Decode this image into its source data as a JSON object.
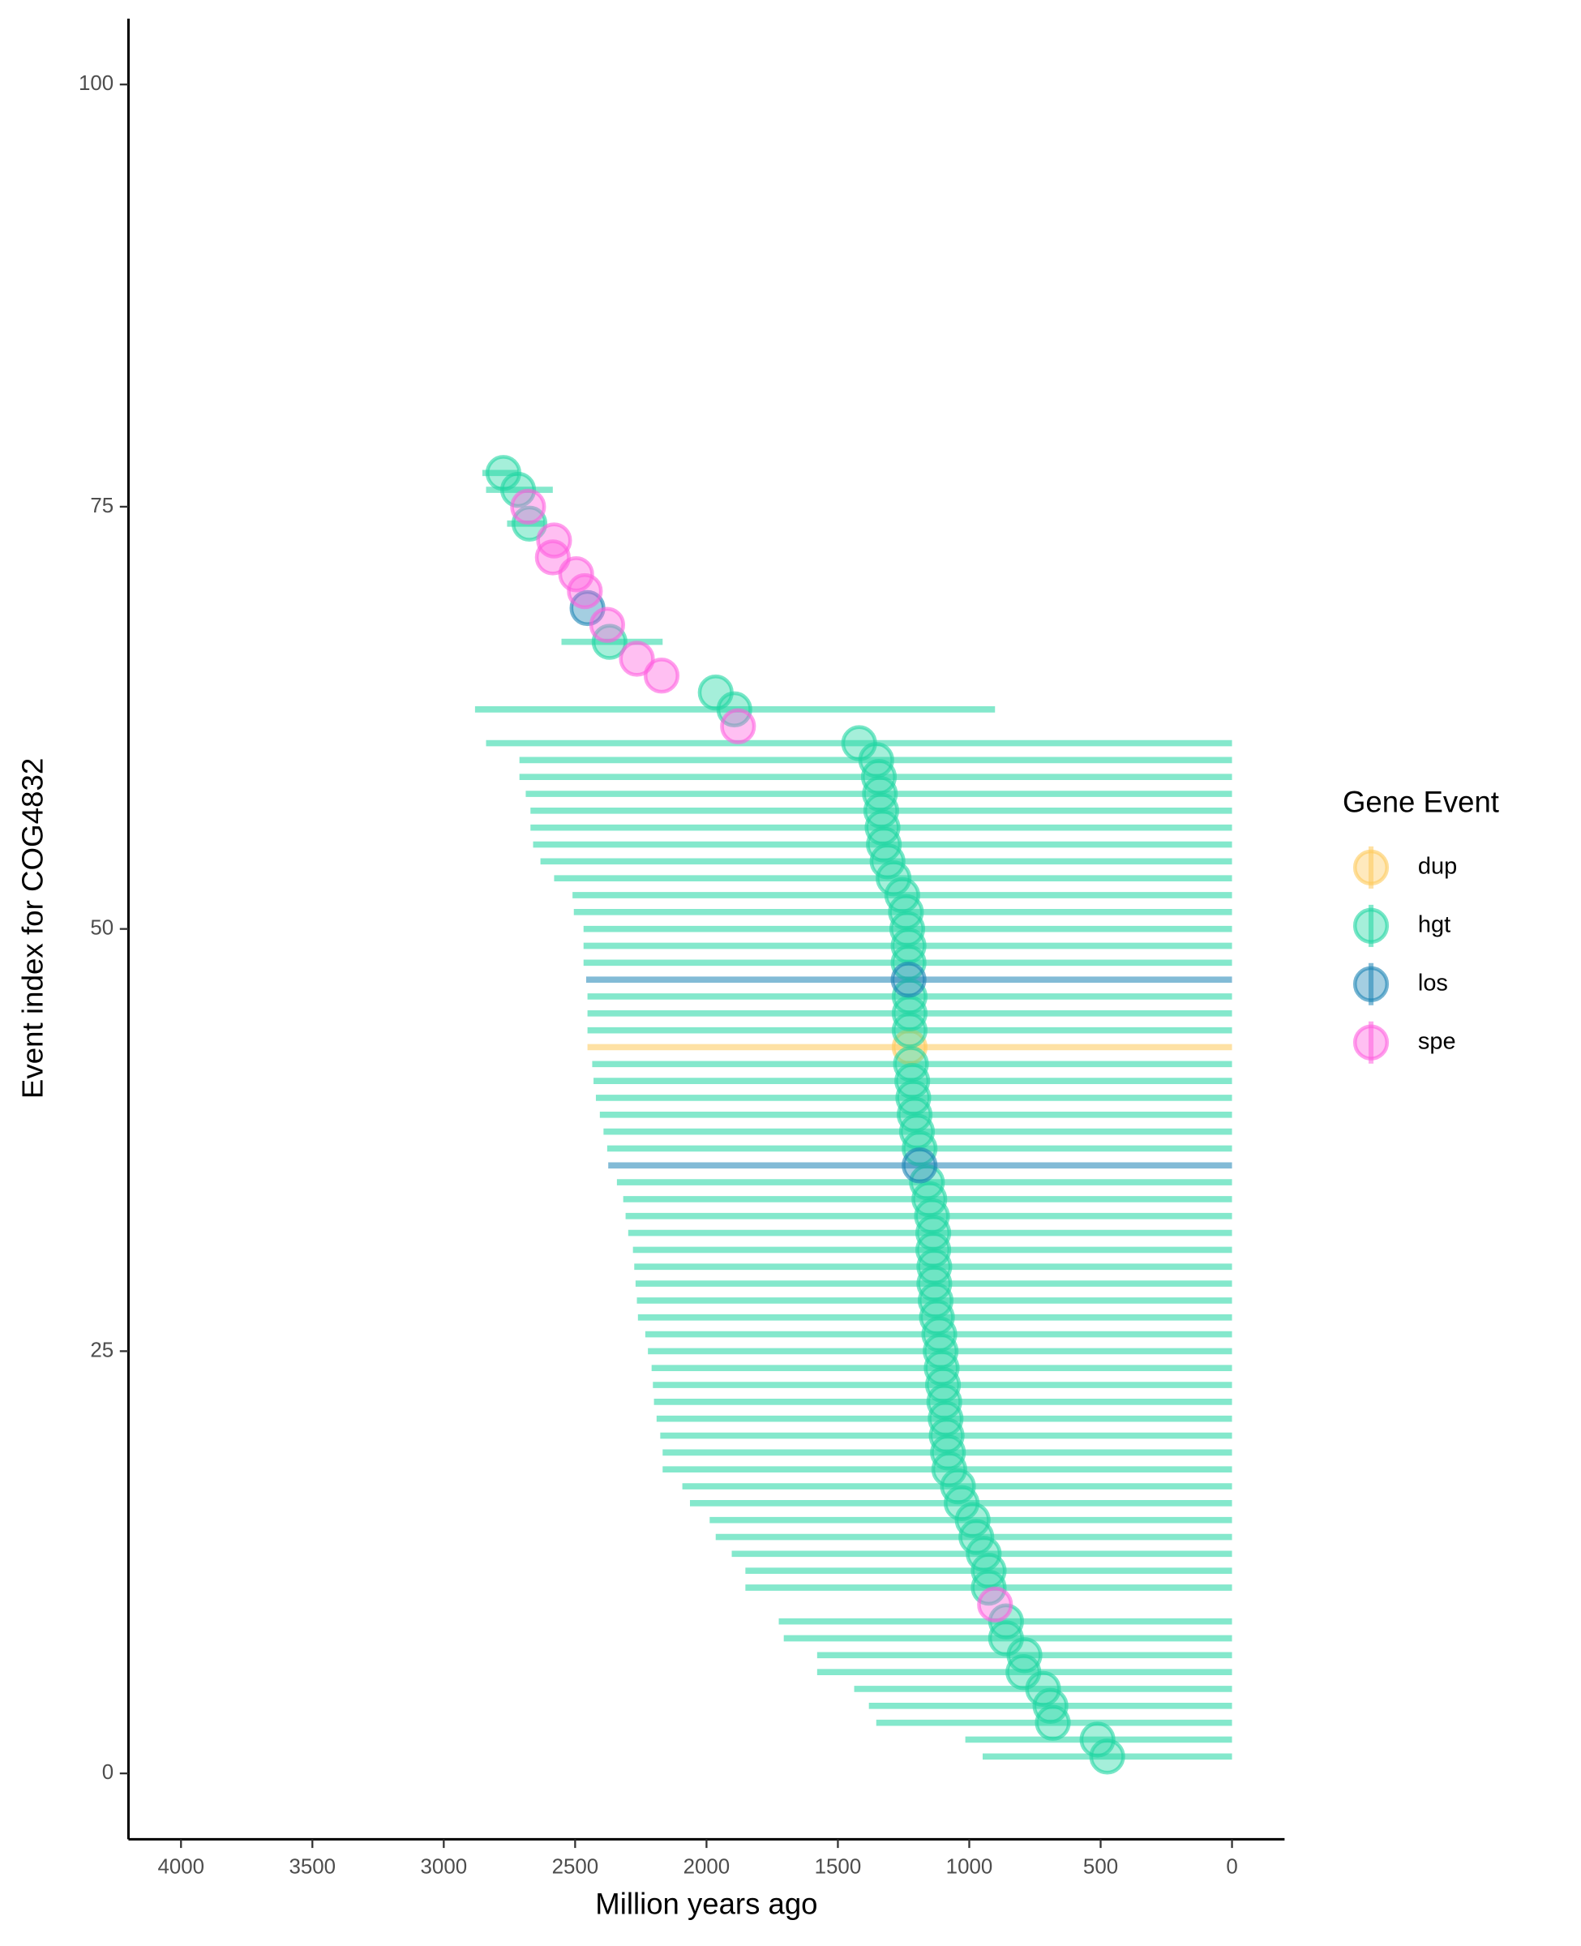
{
  "chart_data": {
    "type": "pointrange",
    "x_label": "Million years ago",
    "y_label": "Event index for COG4832",
    "legend_title": "Gene Event",
    "xlim": [
      4200,
      -200
    ],
    "xticks": [
      4000,
      3500,
      3000,
      2500,
      2000,
      1500,
      1000,
      500,
      0
    ],
    "ylim": [
      -3.9,
      103.9
    ],
    "yticks": [
      0,
      25,
      50,
      75,
      100
    ],
    "series": [
      {
        "name": "dup",
        "color": "#fdc95a",
        "y": [
          43
        ],
        "x": [
          1227
        ],
        "xerr_low": [
          0
        ],
        "xerr_high": [
          2453
        ]
      },
      {
        "name": "hgt",
        "color": "#1fd6a2",
        "y": [
          1,
          2,
          3,
          4,
          5,
          6,
          7,
          8,
          9,
          11,
          12,
          13,
          14,
          15,
          16,
          17,
          18,
          19,
          20,
          21,
          22,
          23,
          24,
          25,
          26,
          27,
          28,
          29,
          30,
          31,
          32,
          33,
          34,
          35,
          37,
          38,
          39,
          40,
          41,
          42,
          44,
          45,
          46,
          48,
          49,
          50,
          51,
          52,
          53,
          54,
          55,
          56,
          57,
          58,
          59,
          60,
          61,
          63,
          64,
          67,
          74,
          76,
          77
        ],
        "x": [
          475,
          512,
          682,
          691,
          719,
          794,
          790,
          860,
          860,
          926,
          926,
          945,
          973,
          987,
          1029,
          1043,
          1076,
          1081,
          1086,
          1090,
          1095,
          1100,
          1105,
          1109,
          1114,
          1123,
          1128,
          1133,
          1133,
          1137,
          1137,
          1142,
          1152,
          1161,
          1189,
          1199,
          1208,
          1213,
          1217,
          1222,
          1227,
          1227,
          1227,
          1231,
          1231,
          1236,
          1241,
          1255,
          1288,
          1311,
          1325,
          1330,
          1335,
          1340,
          1344,
          1354,
          1419,
          1894,
          1965,
          2369,
          2674,
          2717,
          2773
        ],
        "xerr_low": [
          0,
          0,
          0,
          0,
          0,
          0,
          0,
          0,
          0,
          0,
          0,
          0,
          0,
          0,
          0,
          0,
          0,
          0,
          0,
          0,
          0,
          0,
          0,
          0,
          0,
          0,
          0,
          0,
          0,
          0,
          0,
          0,
          0,
          0,
          0,
          0,
          0,
          0,
          0,
          0,
          0,
          0,
          0,
          0,
          0,
          0,
          0,
          0,
          0,
          0,
          0,
          0,
          0,
          0,
          0,
          0,
          0,
          902,
          null,
          2167,
          2618,
          2585,
          2717
        ],
        "xerr_high": [
          949,
          1015,
          1354,
          1382,
          1438,
          1579,
          1579,
          1706,
          1725,
          1852,
          1852,
          1904,
          1965,
          1988,
          2063,
          2092,
          2167,
          2167,
          2176,
          2190,
          2200,
          2204,
          2209,
          2223,
          2233,
          2261,
          2265,
          2270,
          2275,
          2280,
          2298,
          2308,
          2317,
          2341,
          2378,
          2392,
          2406,
          2421,
          2430,
          2435,
          2453,
          2453,
          2453,
          2468,
          2468,
          2468,
          2505,
          2510,
          2580,
          2632,
          2660,
          2670,
          2670,
          2688,
          2712,
          2712,
          2839,
          2881,
          null,
          2552,
          2759,
          2839,
          2853
        ]
      },
      {
        "name": "los",
        "color": "#1b84b4",
        "y": [
          36,
          47,
          69
        ],
        "x": [
          1189,
          1231,
          2453
        ],
        "xerr_low": [
          0,
          0,
          null
        ],
        "xerr_high": [
          2374,
          2458,
          null
        ]
      },
      {
        "name": "spe",
        "color": "#ff5fdf",
        "y": [
          10,
          62,
          65,
          66,
          68,
          70,
          71,
          72,
          73,
          75
        ],
        "x": [
          902,
          1880,
          2171,
          2265,
          2378,
          2463,
          2496,
          2585,
          2580,
          2679
        ],
        "xerr_low": [
          null,
          null,
          null,
          null,
          null,
          null,
          null,
          null,
          null,
          null
        ],
        "xerr_high": [
          null,
          null,
          null,
          null,
          null,
          null,
          null,
          null,
          null,
          null
        ]
      }
    ]
  }
}
